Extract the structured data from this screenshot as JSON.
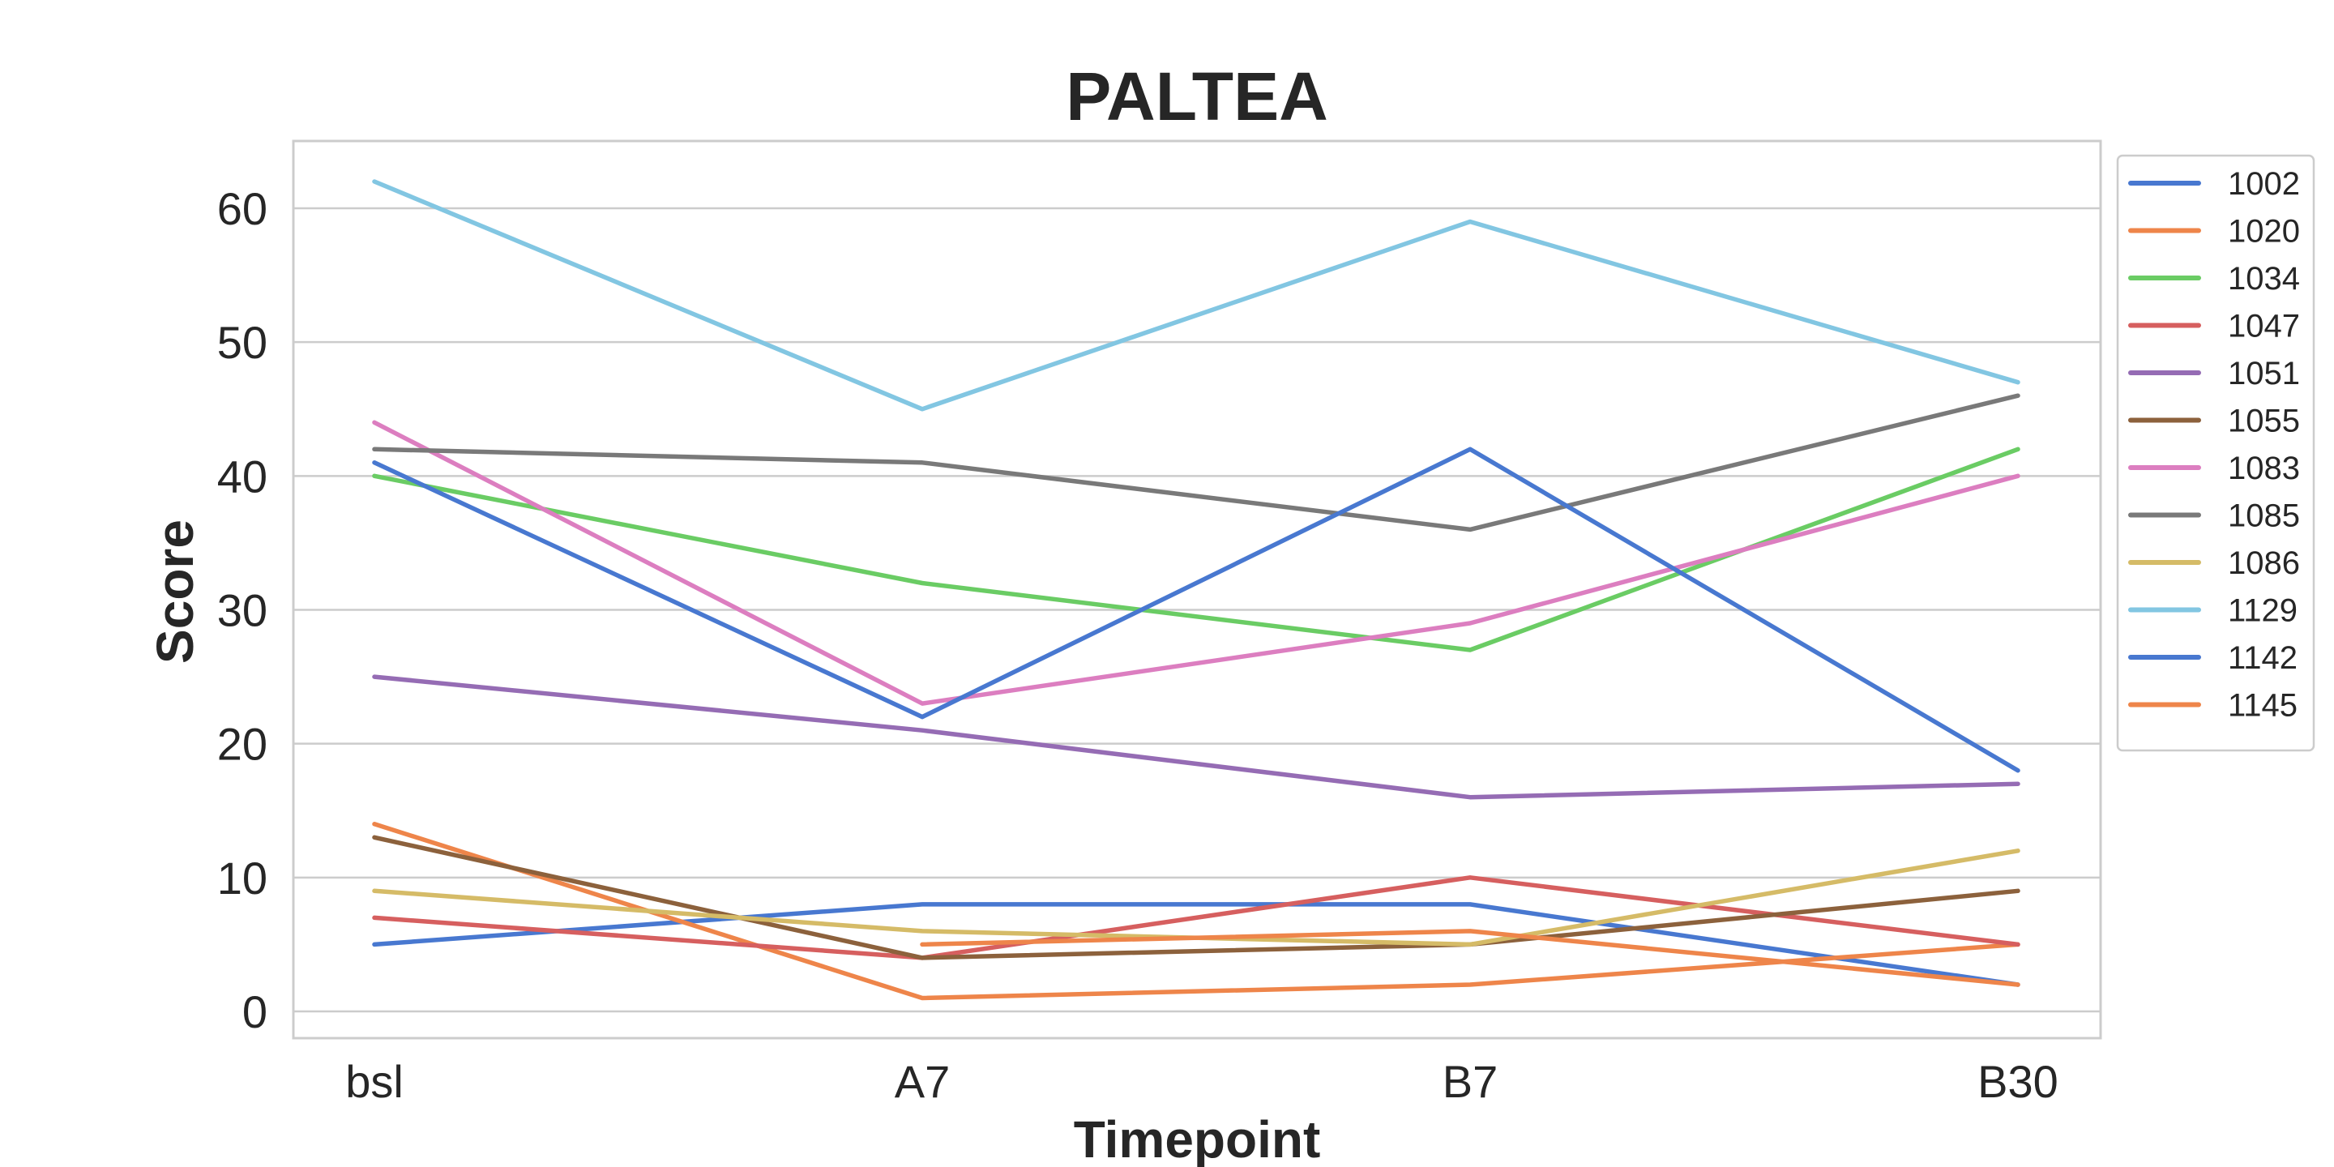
{
  "chart_data": {
    "type": "line",
    "title": "PALTEA",
    "xlabel": "Timepoint",
    "ylabel": "Score",
    "categories": [
      "bsl",
      "A7",
      "B7",
      "B30"
    ],
    "ylim": [
      -2,
      65
    ],
    "yticks": [
      0,
      10,
      20,
      30,
      40,
      50,
      60
    ],
    "grid": true,
    "legend_position": "outside-right-top",
    "series": [
      {
        "name": "1002",
        "color": "#4878d0",
        "values": [
          5,
          8,
          8,
          2
        ]
      },
      {
        "name": "1020",
        "color": "#ee854a",
        "values": [
          14,
          1,
          2,
          5
        ]
      },
      {
        "name": "1034",
        "color": "#6acc64",
        "values": [
          40,
          32,
          27,
          42
        ]
      },
      {
        "name": "1047",
        "color": "#d65f5f",
        "values": [
          7,
          4,
          10,
          5
        ]
      },
      {
        "name": "1051",
        "color": "#956cb4",
        "values": [
          25,
          21,
          16,
          17
        ]
      },
      {
        "name": "1055",
        "color": "#8c613c",
        "values": [
          13,
          4,
          5,
          9
        ]
      },
      {
        "name": "1083",
        "color": "#dc7ec0",
        "values": [
          44,
          23,
          29,
          40
        ]
      },
      {
        "name": "1085",
        "color": "#797979",
        "values": [
          42,
          41,
          36,
          46
        ]
      },
      {
        "name": "1086",
        "color": "#d5bb67",
        "values": [
          9,
          6,
          5,
          12
        ]
      },
      {
        "name": "1129",
        "color": "#82c6e2",
        "values": [
          62,
          45,
          59,
          47
        ]
      },
      {
        "name": "1142",
        "color": "#4878d0",
        "values": [
          41,
          22,
          42,
          18
        ]
      },
      {
        "name": "1145",
        "color": "#ee854a",
        "values": [
          null,
          5,
          6,
          2
        ]
      }
    ]
  }
}
